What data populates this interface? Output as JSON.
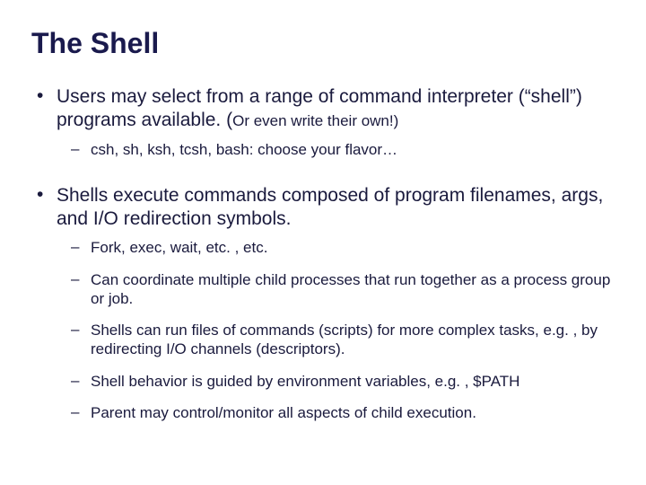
{
  "title": "The Shell",
  "colors": {
    "heading": "#1a1a4d",
    "body": "#1a1a3d",
    "background": "#ffffff"
  },
  "typography": {
    "title_fontsize": 32,
    "body_fontsize": 21,
    "sub_fontsize": 17,
    "font_family": "Arial"
  },
  "bullets": [
    {
      "text_main": "Users may select from a range of command interpreter (“shell”) programs available. (",
      "text_small": "Or even write their own!)",
      "sub": [
        "csh, sh, ksh, tcsh, bash: choose your flavor…"
      ]
    },
    {
      "text_main": "Shells execute commands composed of program filenames, args, and I/O redirection symbols.",
      "text_small": "",
      "sub": [
        "Fork, exec, wait, etc. , etc.",
        "Can coordinate multiple child processes that run together as a process group or job.",
        "Shells can run files of commands (scripts) for more complex tasks, e.g. , by redirecting I/O channels (descriptors).",
        "Shell behavior is guided by environment variables, e.g. , $PATH",
        "Parent may control/monitor all aspects of child execution."
      ]
    }
  ]
}
